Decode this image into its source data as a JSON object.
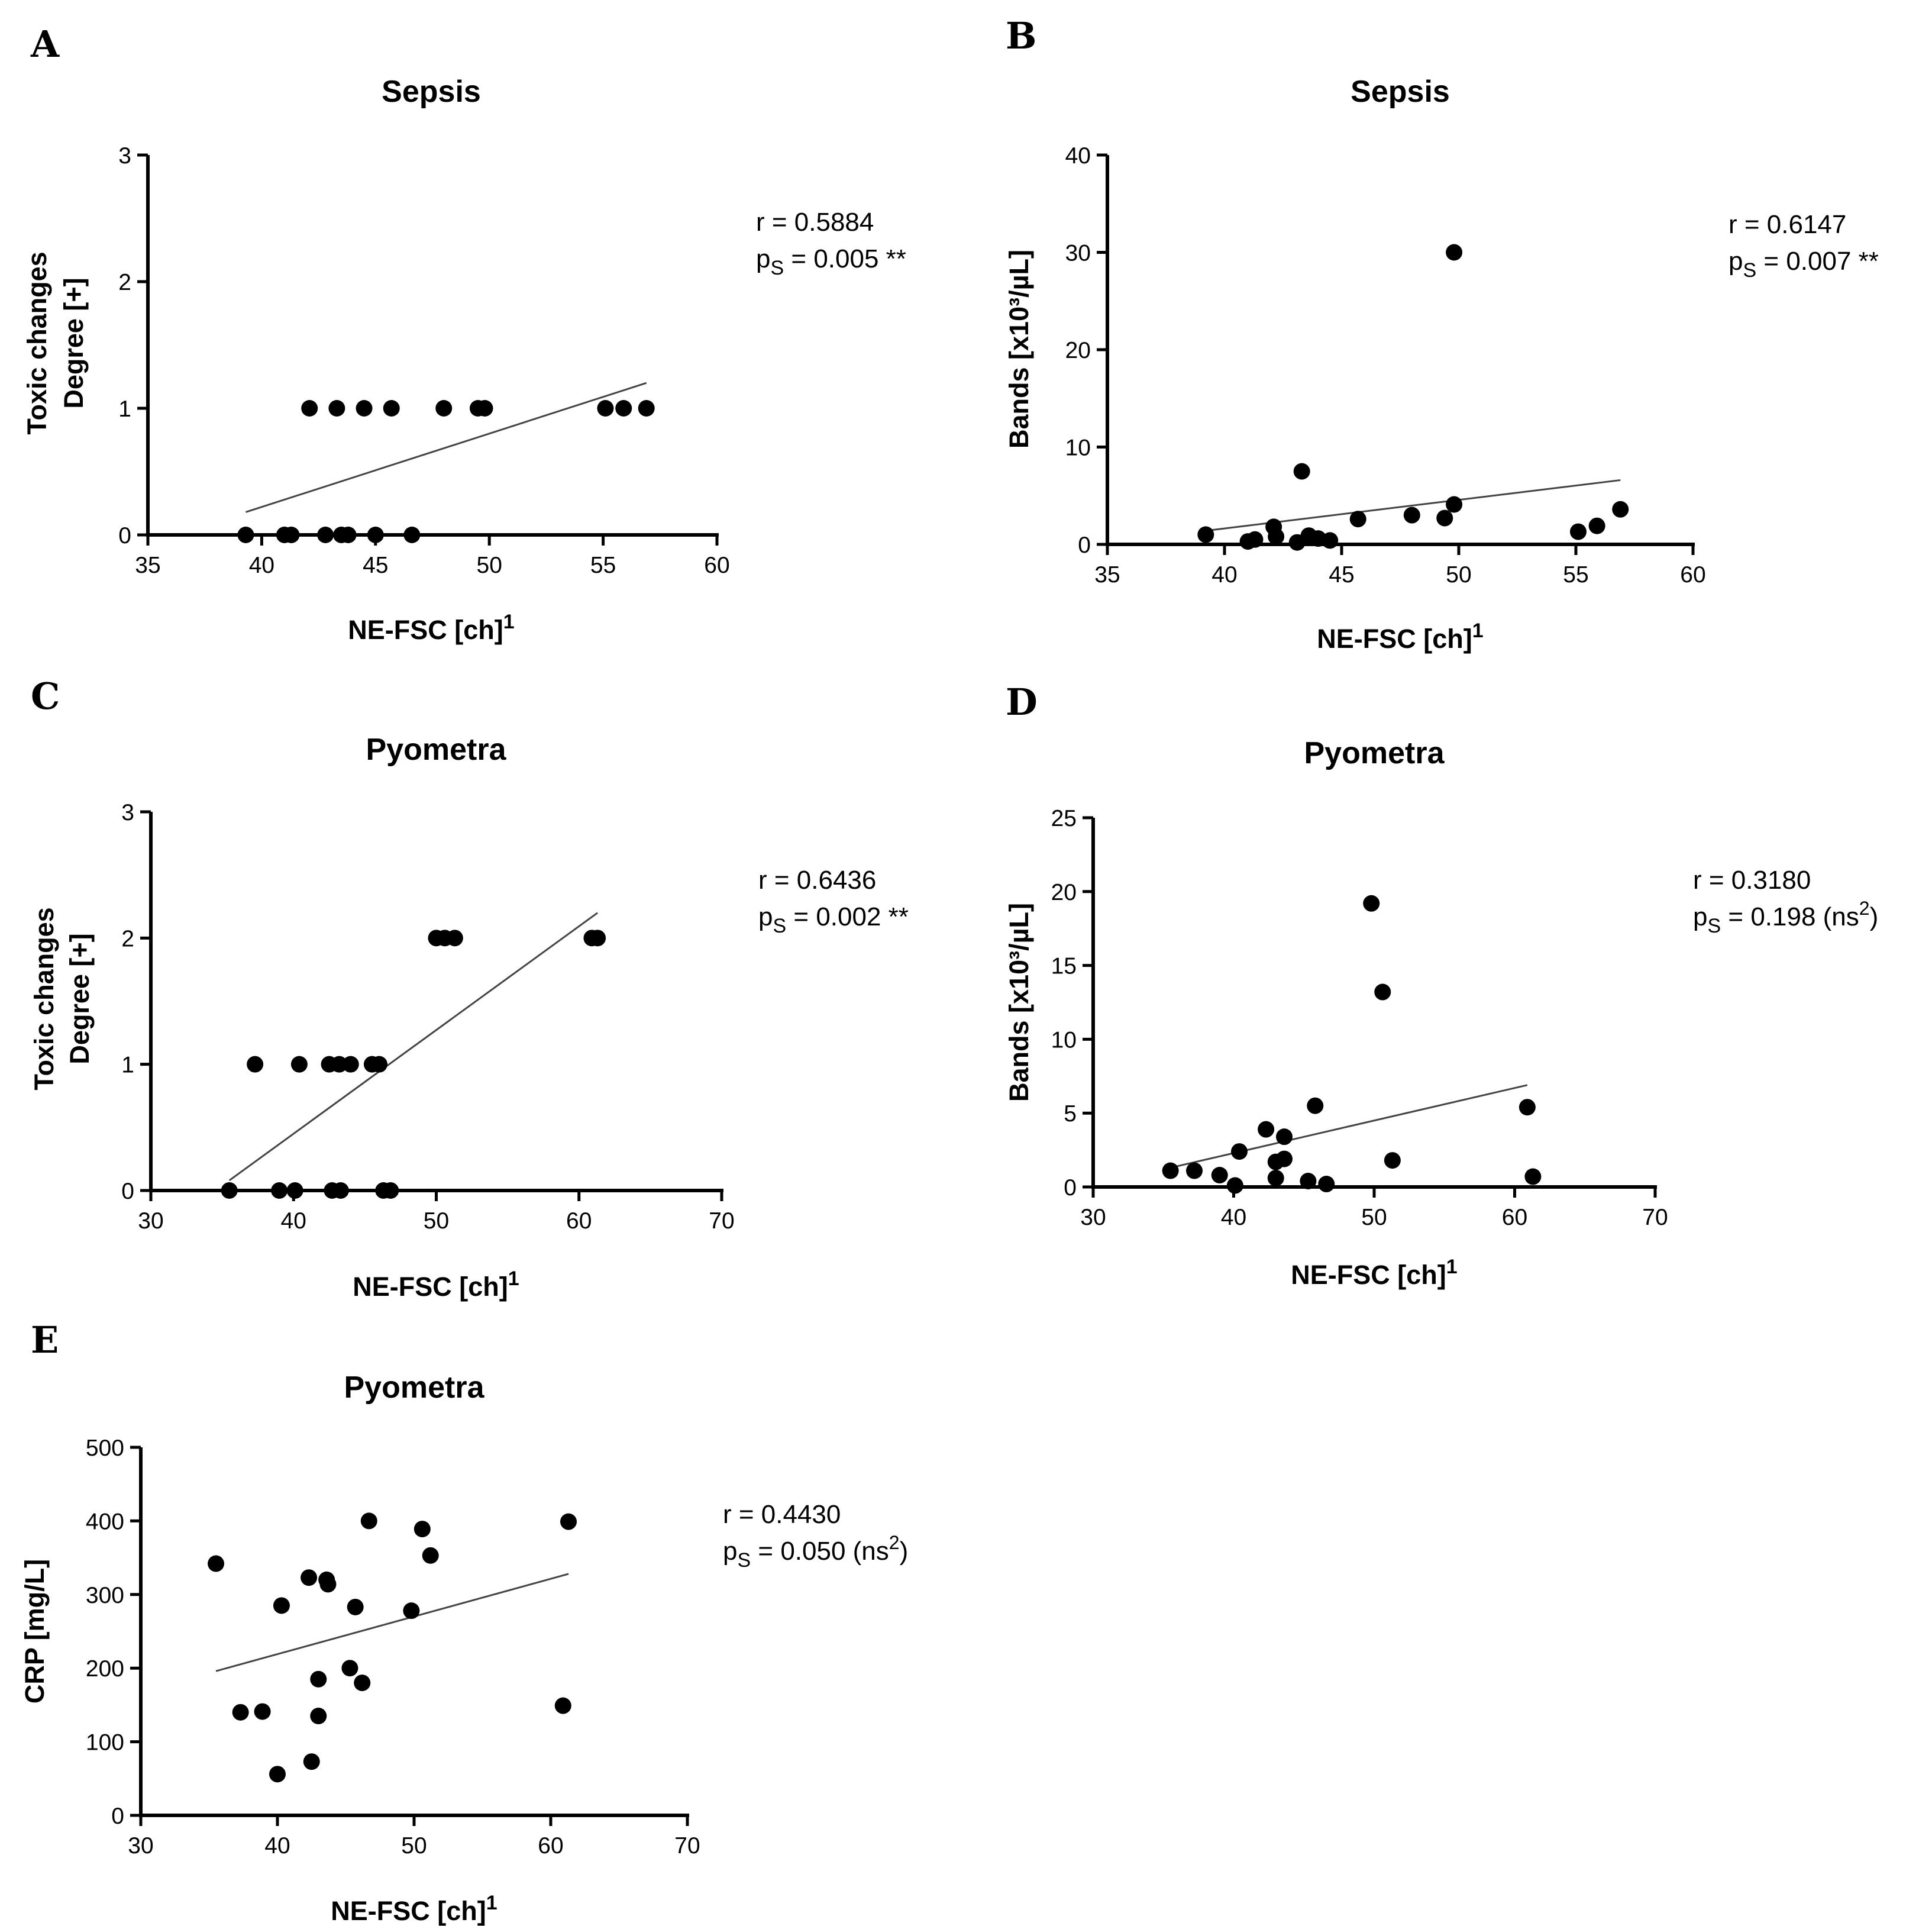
{
  "chart_data": [
    {
      "panel": "A",
      "type": "scatter",
      "title": "Sepsis",
      "xlabel": "NE-FSC [ch]",
      "xlabel_sup": "1",
      "ylabel_lines": [
        "Toxic changes",
        "Degree [+]"
      ],
      "xlim": [
        35,
        60
      ],
      "ylim": [
        0,
        3
      ],
      "xticks": [
        35,
        40,
        45,
        50,
        55,
        60
      ],
      "yticks": [
        0,
        1,
        2,
        3
      ],
      "points": [
        [
          39.3,
          0
        ],
        [
          41.0,
          0
        ],
        [
          41.3,
          0
        ],
        [
          42.8,
          0
        ],
        [
          43.5,
          0
        ],
        [
          43.8,
          0
        ],
        [
          45.0,
          0
        ],
        [
          46.6,
          0
        ],
        [
          42.1,
          1
        ],
        [
          43.3,
          1
        ],
        [
          44.5,
          1
        ],
        [
          45.7,
          1
        ],
        [
          48.0,
          1
        ],
        [
          49.5,
          1
        ],
        [
          49.8,
          1
        ],
        [
          55.1,
          1
        ],
        [
          55.9,
          1
        ],
        [
          56.9,
          1
        ]
      ],
      "fit": [
        [
          39.3,
          0.18
        ],
        [
          56.9,
          1.2
        ]
      ],
      "stats": {
        "r": "r = 0.5884",
        "p_prefix": "p",
        "p_sub": "S",
        "p_value": " = 0.005 **",
        "p_sup": "",
        "p_tail": ""
      }
    },
    {
      "panel": "B",
      "type": "scatter",
      "title": "Sepsis",
      "xlabel": "NE-FSC [ch]",
      "xlabel_sup": "1",
      "ylabel_lines": [
        "Bands [x10³/µL]"
      ],
      "xlim": [
        35,
        60
      ],
      "ylim": [
        0,
        40
      ],
      "xticks": [
        35,
        40,
        45,
        50,
        55,
        60
      ],
      "yticks": [
        0,
        10,
        20,
        30,
        40
      ],
      "points": [
        [
          39.2,
          1.0
        ],
        [
          41.0,
          0.3
        ],
        [
          41.3,
          0.5
        ],
        [
          42.1,
          1.8
        ],
        [
          42.2,
          0.8
        ],
        [
          43.1,
          0.2
        ],
        [
          43.3,
          7.5
        ],
        [
          43.6,
          0.9
        ],
        [
          44.0,
          0.6
        ],
        [
          44.5,
          0.4
        ],
        [
          45.7,
          2.6
        ],
        [
          48.0,
          3.0
        ],
        [
          49.4,
          2.7
        ],
        [
          49.8,
          4.1
        ],
        [
          49.8,
          30.0
        ],
        [
          55.1,
          1.3
        ],
        [
          55.9,
          1.9
        ],
        [
          56.9,
          3.6
        ]
      ],
      "fit": [
        [
          39.2,
          1.4
        ],
        [
          56.9,
          6.6
        ]
      ],
      "stats": {
        "r": "r = 0.6147",
        "p_prefix": "p",
        "p_sub": "S",
        "p_value": " = 0.007 **",
        "p_sup": "",
        "p_tail": ""
      }
    },
    {
      "panel": "C",
      "type": "scatter",
      "title": "Pyometra",
      "xlabel": "NE-FSC [ch]",
      "xlabel_sup": "1",
      "ylabel_lines": [
        "Toxic changes",
        "Degree [+]"
      ],
      "xlim": [
        30,
        70
      ],
      "ylim": [
        0,
        3
      ],
      "xticks": [
        30,
        40,
        50,
        60,
        70
      ],
      "yticks": [
        0,
        1,
        2,
        3
      ],
      "points": [
        [
          35.5,
          0
        ],
        [
          39.0,
          0
        ],
        [
          40.1,
          0
        ],
        [
          42.7,
          0
        ],
        [
          43.3,
          0
        ],
        [
          46.3,
          0
        ],
        [
          46.8,
          0
        ],
        [
          37.3,
          1
        ],
        [
          40.4,
          1
        ],
        [
          42.5,
          1
        ],
        [
          43.2,
          1
        ],
        [
          44.0,
          1
        ],
        [
          45.5,
          1
        ],
        [
          46.0,
          1
        ],
        [
          50.0,
          2
        ],
        [
          50.6,
          2
        ],
        [
          51.3,
          2
        ],
        [
          60.9,
          2
        ],
        [
          61.3,
          2
        ]
      ],
      "fit": [
        [
          35.5,
          0.08
        ],
        [
          61.3,
          2.2
        ]
      ],
      "stats": {
        "r": "r = 0.6436",
        "p_prefix": "p",
        "p_sub": "S",
        "p_value": " = 0.002 **",
        "p_sup": "",
        "p_tail": ""
      }
    },
    {
      "panel": "D",
      "type": "scatter",
      "title": "Pyometra",
      "xlabel": "NE-FSC [ch]",
      "xlabel_sup": "1",
      "ylabel_lines": [
        "Bands [x10³/µL]"
      ],
      "xlim": [
        30,
        70
      ],
      "ylim": [
        0,
        25
      ],
      "xticks": [
        30,
        40,
        50,
        60,
        70
      ],
      "yticks": [
        0,
        5,
        10,
        15,
        20,
        25
      ],
      "points": [
        [
          35.5,
          1.1
        ],
        [
          37.2,
          1.1
        ],
        [
          39.0,
          0.8
        ],
        [
          40.1,
          0.1
        ],
        [
          40.4,
          2.4
        ],
        [
          42.3,
          3.9
        ],
        [
          43.0,
          0.6
        ],
        [
          43.0,
          1.7
        ],
        [
          43.6,
          1.9
        ],
        [
          43.6,
          3.4
        ],
        [
          45.3,
          0.4
        ],
        [
          45.8,
          5.5
        ],
        [
          46.6,
          0.2
        ],
        [
          49.8,
          19.2
        ],
        [
          50.6,
          13.2
        ],
        [
          51.3,
          1.8
        ],
        [
          60.9,
          5.4
        ],
        [
          61.3,
          0.7
        ]
      ],
      "fit": [
        [
          35.5,
          1.3
        ],
        [
          60.9,
          6.9
        ]
      ],
      "stats": {
        "r": "r = 0.3180",
        "p_prefix": "p",
        "p_sub": "S",
        "p_value": " = 0.198 (ns",
        "p_sup": "2",
        "p_tail": ")"
      }
    },
    {
      "panel": "E",
      "type": "scatter",
      "title": "Pyometra",
      "xlabel": "NE-FSC [ch]",
      "xlabel_sup": "1",
      "ylabel_lines": [
        "CRP [mg/L]"
      ],
      "xlim": [
        30,
        70
      ],
      "ylim": [
        0,
        500
      ],
      "xticks": [
        30,
        40,
        50,
        60,
        70
      ],
      "yticks": [
        0,
        100,
        200,
        300,
        400,
        500
      ],
      "points": [
        [
          35.5,
          342
        ],
        [
          37.3,
          140
        ],
        [
          38.9,
          141
        ],
        [
          40.0,
          56
        ],
        [
          40.3,
          285
        ],
        [
          42.3,
          323
        ],
        [
          42.5,
          73
        ],
        [
          43.0,
          185
        ],
        [
          43.0,
          135
        ],
        [
          43.6,
          320
        ],
        [
          43.7,
          314
        ],
        [
          45.3,
          200
        ],
        [
          45.7,
          283
        ],
        [
          46.2,
          180
        ],
        [
          46.7,
          400
        ],
        [
          49.8,
          278
        ],
        [
          50.6,
          389
        ],
        [
          51.2,
          353
        ],
        [
          60.9,
          149
        ],
        [
          61.3,
          399
        ]
      ],
      "fit": [
        [
          35.5,
          196
        ],
        [
          61.3,
          328
        ]
      ],
      "stats": {
        "r": "r = 0.4430",
        "p_prefix": "p",
        "p_sub": "S",
        "p_value": " = 0.050 (ns",
        "p_sup": "2",
        "p_tail": ")"
      }
    }
  ]
}
